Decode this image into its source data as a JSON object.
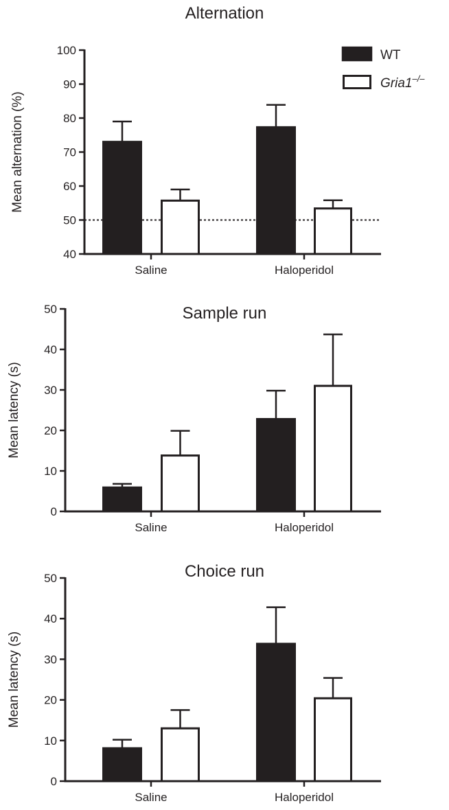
{
  "legend": {
    "wt_label": "WT",
    "ko_label_main": "Gria1",
    "ko_label_sup": "–/–",
    "position": "top-right"
  },
  "colors": {
    "wt_fill": "#231f20",
    "ko_fill": "#ffffff",
    "stroke": "#231f20"
  },
  "chart_data": [
    {
      "type": "bar",
      "title": "Alternation",
      "xlabel": "",
      "ylabel": "Mean alternation (%)",
      "ylim": [
        40,
        100
      ],
      "yticks": [
        40,
        50,
        60,
        70,
        80,
        90,
        100
      ],
      "categories": [
        "Saline",
        "Haloperidol"
      ],
      "reference_line": {
        "y": 50,
        "style": "dotted"
      },
      "series": [
        {
          "name": "WT",
          "values": [
            73,
            77.3
          ],
          "errors": [
            6,
            6.6
          ]
        },
        {
          "name": "Gria1–/–",
          "values": [
            55.7,
            53.4
          ],
          "errors": [
            3.3,
            2.4
          ]
        }
      ]
    },
    {
      "type": "bar",
      "title": "Sample run",
      "xlabel": "",
      "ylabel": "Mean latency (s)",
      "ylim": [
        0,
        50
      ],
      "yticks": [
        0,
        10,
        20,
        30,
        40,
        50
      ],
      "categories": [
        "Saline",
        "Haloperidol"
      ],
      "series": [
        {
          "name": "WT",
          "values": [
            5.9,
            22.8
          ],
          "errors": [
            0.9,
            7
          ]
        },
        {
          "name": "Gria1–/–",
          "values": [
            13.8,
            31
          ],
          "errors": [
            6.1,
            12.7
          ]
        }
      ]
    },
    {
      "type": "bar",
      "title": "Choice run",
      "xlabel": "",
      "ylabel": "Mean latency (s)",
      "ylim": [
        0,
        50
      ],
      "yticks": [
        0,
        10,
        20,
        30,
        40,
        50
      ],
      "categories": [
        "Saline",
        "Haloperidol"
      ],
      "series": [
        {
          "name": "WT",
          "values": [
            8.1,
            33.8
          ],
          "errors": [
            2.1,
            9
          ]
        },
        {
          "name": "Gria1–/–",
          "values": [
            13,
            20.4
          ],
          "errors": [
            4.5,
            5
          ]
        }
      ]
    }
  ]
}
